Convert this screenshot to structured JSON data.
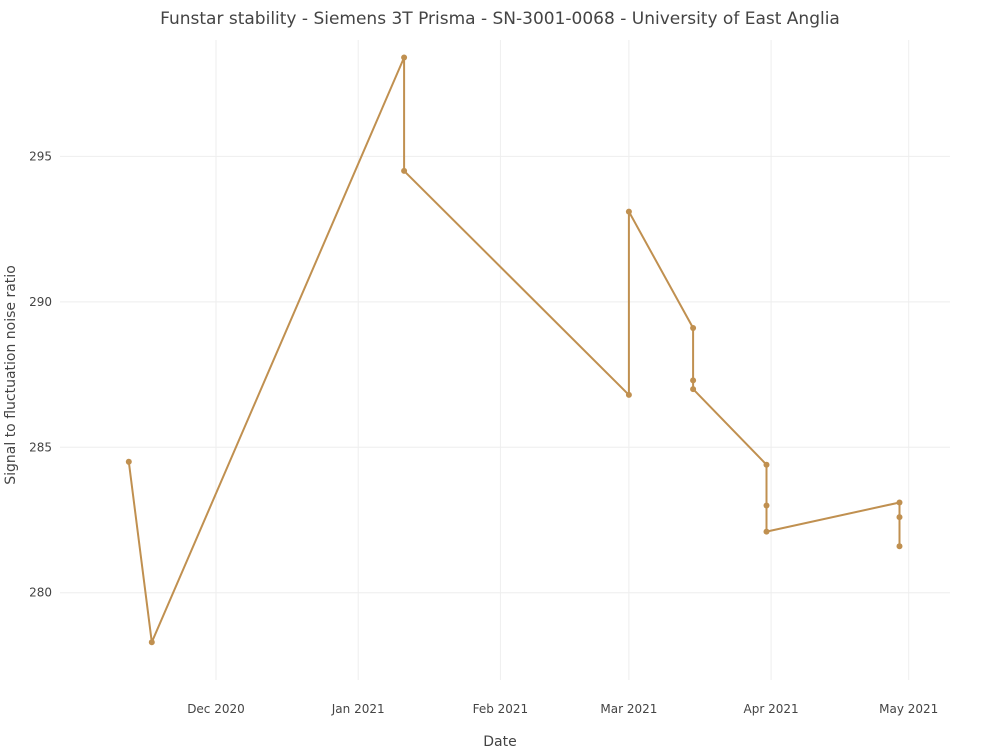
{
  "chart_data": {
    "type": "line",
    "title": "Funstar stability - Siemens 3T Prisma - SN-3001-0068 - University of East Anglia",
    "xlabel": "Date",
    "ylabel": "Signal to fluctuation noise ratio",
    "x_type": "date",
    "xlim": [
      "2020-10-28",
      "2021-05-10"
    ],
    "ylim": [
      277,
      299
    ],
    "x_ticks": [
      {
        "date": "2020-12-01",
        "label": "Dec 2020"
      },
      {
        "date": "2021-01-01",
        "label": "Jan 2021"
      },
      {
        "date": "2021-02-01",
        "label": "Feb 2021"
      },
      {
        "date": "2021-03-01",
        "label": "Mar 2021"
      },
      {
        "date": "2021-04-01",
        "label": "Apr 2021"
      },
      {
        "date": "2021-05-01",
        "label": "May 2021"
      }
    ],
    "y_ticks": [
      280,
      285,
      290,
      295
    ],
    "grid": true,
    "color": "#c09050",
    "series": [
      {
        "name": "",
        "points": [
          {
            "x": "2020-11-12",
            "y": 284.5
          },
          {
            "x": "2020-11-17",
            "y": 278.3
          },
          {
            "x": "2021-01-11",
            "y": 298.4
          },
          {
            "x": "2021-01-11",
            "y": 294.5
          },
          {
            "x": "2021-03-01",
            "y": 286.8
          },
          {
            "x": "2021-03-01",
            "y": 293.1
          },
          {
            "x": "2021-03-15",
            "y": 289.1
          },
          {
            "x": "2021-03-15",
            "y": 287.3
          },
          {
            "x": "2021-03-15",
            "y": 287.0
          },
          {
            "x": "2021-03-31",
            "y": 284.4
          },
          {
            "x": "2021-03-31",
            "y": 283.0
          },
          {
            "x": "2021-03-31",
            "y": 282.1
          },
          {
            "x": "2021-04-29",
            "y": 283.1
          },
          {
            "x": "2021-04-29",
            "y": 282.6
          },
          {
            "x": "2021-04-29",
            "y": 281.6
          }
        ]
      }
    ]
  }
}
